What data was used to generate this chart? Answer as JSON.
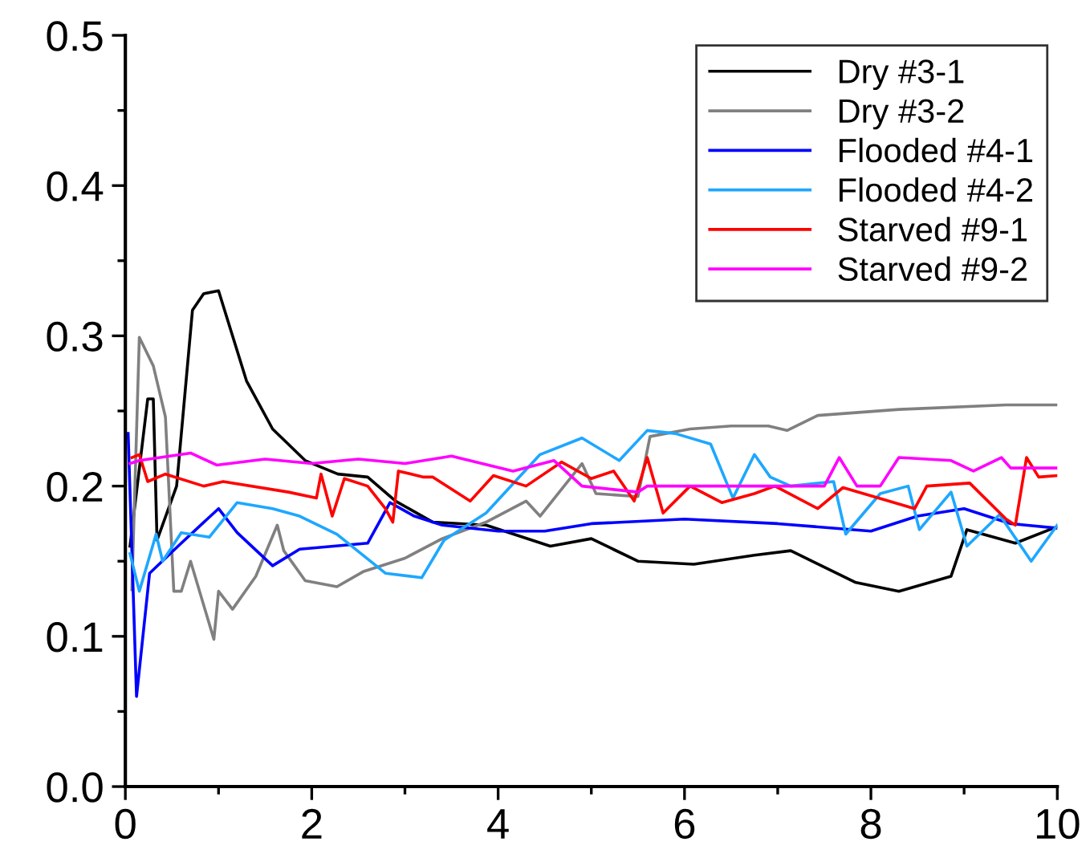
{
  "chart_data": {
    "type": "line",
    "xlim": [
      0,
      10
    ],
    "ylim": [
      0,
      0.5
    ],
    "xticks": [
      0,
      2,
      4,
      6,
      8,
      10
    ],
    "yticks": [
      {
        "value": 0,
        "label": "0.0"
      },
      {
        "value": 0.1,
        "label": "0.1"
      },
      {
        "value": 0.2,
        "label": "0.2"
      },
      {
        "value": 0.3,
        "label": "0.3"
      },
      {
        "value": 0.4,
        "label": "0.4"
      },
      {
        "value": 0.5,
        "label": "0.5"
      }
    ],
    "grid": false,
    "legend": "top right",
    "marker": "none",
    "line_style": "solid",
    "series": [
      {
        "name": "Dry #3-1",
        "color": "#000000",
        "x": [
          0.05,
          0.24,
          0.3,
          0.34,
          0.55,
          0.72,
          0.84,
          1.0,
          1.3,
          1.58,
          1.93,
          2.28,
          2.6,
          2.9,
          3.3,
          3.87,
          4.56,
          5.0,
          5.5,
          6.1,
          6.75,
          7.14,
          7.83,
          8.3,
          8.86,
          9.03,
          9.55,
          10
        ],
        "values": [
          0.16,
          0.258,
          0.258,
          0.164,
          0.2,
          0.317,
          0.328,
          0.33,
          0.27,
          0.238,
          0.217,
          0.208,
          0.206,
          0.19,
          0.176,
          0.174,
          0.16,
          0.165,
          0.15,
          0.148,
          0.154,
          0.157,
          0.136,
          0.13,
          0.14,
          0.171,
          0.162,
          0.173
        ]
      },
      {
        "name": "Dry #3-2",
        "color": "#808080",
        "x": [
          0.07,
          0.15,
          0.3,
          0.43,
          0.52,
          0.6,
          0.7,
          0.95,
          1.0,
          1.15,
          1.4,
          1.63,
          1.7,
          1.93,
          2.27,
          2.55,
          3.0,
          3.4,
          3.87,
          4.3,
          4.45,
          4.9,
          5.05,
          5.5,
          5.63,
          6.06,
          6.5,
          6.9,
          7.1,
          7.43,
          8.3,
          9.45,
          10
        ],
        "values": [
          0.131,
          0.299,
          0.28,
          0.246,
          0.13,
          0.13,
          0.15,
          0.098,
          0.13,
          0.118,
          0.14,
          0.174,
          0.157,
          0.137,
          0.133,
          0.143,
          0.152,
          0.165,
          0.176,
          0.19,
          0.18,
          0.215,
          0.195,
          0.193,
          0.233,
          0.238,
          0.24,
          0.24,
          0.237,
          0.247,
          0.251,
          0.254,
          0.254
        ]
      },
      {
        "name": "Flooded #4-1",
        "color": "#0000ff",
        "x": [
          0.03,
          0.12,
          0.26,
          0.6,
          1.0,
          1.2,
          1.58,
          1.87,
          2.6,
          2.84,
          3.1,
          3.4,
          4.0,
          4.5,
          5.0,
          6.0,
          7.0,
          8.0,
          8.5,
          9.0,
          9.5,
          10
        ],
        "values": [
          0.235,
          0.06,
          0.142,
          0.162,
          0.185,
          0.169,
          0.147,
          0.158,
          0.162,
          0.189,
          0.18,
          0.174,
          0.17,
          0.17,
          0.175,
          0.178,
          0.175,
          0.17,
          0.18,
          0.185,
          0.175,
          0.172
        ]
      },
      {
        "name": "Flooded #4-2",
        "color": "#1ea7ff",
        "x": [
          0.05,
          0.15,
          0.33,
          0.4,
          0.6,
          0.9,
          1.2,
          1.58,
          1.87,
          2.27,
          2.79,
          3.18,
          3.42,
          3.87,
          4.45,
          4.9,
          5.3,
          5.6,
          5.9,
          6.28,
          6.52,
          6.75,
          6.92,
          7.14,
          7.6,
          7.73,
          8.1,
          8.4,
          8.52,
          8.86,
          9.03,
          9.38,
          9.72,
          10
        ],
        "values": [
          0.155,
          0.13,
          0.168,
          0.15,
          0.169,
          0.166,
          0.189,
          0.185,
          0.18,
          0.168,
          0.142,
          0.139,
          0.164,
          0.182,
          0.221,
          0.232,
          0.217,
          0.237,
          0.235,
          0.228,
          0.192,
          0.221,
          0.206,
          0.2,
          0.203,
          0.168,
          0.195,
          0.2,
          0.171,
          0.196,
          0.16,
          0.181,
          0.15,
          0.174
        ]
      },
      {
        "name": "Starved #9-1",
        "color": "#ff0000",
        "x": [
          0.07,
          0.15,
          0.24,
          0.43,
          0.84,
          1.05,
          1.75,
          2.05,
          2.1,
          2.22,
          2.35,
          2.6,
          2.79,
          2.87,
          2.93,
          3.2,
          3.3,
          3.7,
          3.95,
          4.3,
          4.68,
          5.0,
          5.24,
          5.46,
          5.6,
          5.77,
          6.06,
          6.4,
          6.75,
          6.97,
          7.43,
          7.7,
          8.47,
          8.6,
          9.06,
          9.45,
          9.55,
          9.67,
          9.8,
          10
        ],
        "values": [
          0.219,
          0.221,
          0.203,
          0.208,
          0.2,
          0.203,
          0.196,
          0.192,
          0.208,
          0.18,
          0.205,
          0.2,
          0.185,
          0.176,
          0.21,
          0.206,
          0.206,
          0.19,
          0.207,
          0.2,
          0.216,
          0.205,
          0.21,
          0.19,
          0.219,
          0.182,
          0.2,
          0.189,
          0.195,
          0.2,
          0.185,
          0.199,
          0.185,
          0.2,
          0.202,
          0.178,
          0.174,
          0.219,
          0.206,
          0.207
        ]
      },
      {
        "name": "Starved #9-2",
        "color": "#ff00ff",
        "x": [
          0.05,
          0.15,
          0.7,
          0.98,
          1.5,
          2.0,
          2.5,
          3.0,
          3.5,
          4.16,
          4.6,
          4.9,
          5.5,
          5.6,
          6.75,
          7.5,
          7.66,
          7.85,
          8.1,
          8.3,
          8.86,
          9.1,
          9.4,
          9.5,
          10
        ],
        "values": [
          0.215,
          0.217,
          0.222,
          0.214,
          0.218,
          0.215,
          0.218,
          0.215,
          0.22,
          0.21,
          0.217,
          0.2,
          0.196,
          0.2,
          0.2,
          0.2,
          0.219,
          0.2,
          0.2,
          0.219,
          0.217,
          0.21,
          0.219,
          0.212,
          0.212
        ]
      }
    ]
  }
}
